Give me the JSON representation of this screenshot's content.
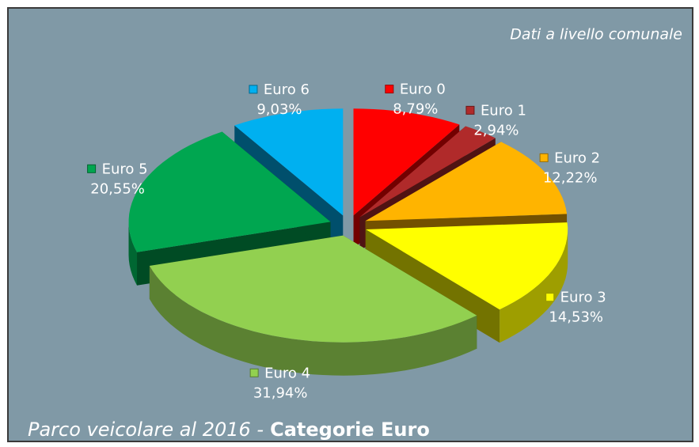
{
  "chart_data": {
    "type": "pie",
    "title": "Parco veicolare al 2016 -",
    "subtitle": "Categorie Euro",
    "annotation": "Dati a livello comunale",
    "categories": [
      "Euro 0",
      "Euro 1",
      "Euro 2",
      "Euro 3",
      "Euro 4",
      "Euro 5",
      "Euro 6"
    ],
    "values": [
      8.79,
      2.94,
      12.22,
      14.53,
      31.94,
      20.55,
      9.03
    ],
    "value_labels": [
      "8,79%",
      "2,94%",
      "12,22%",
      "14,53%",
      "31,94%",
      "20,55%",
      "9,03%"
    ],
    "colors": [
      "#ff0000",
      "#b02a2a",
      "#ffb400",
      "#ffff00",
      "#92d050",
      "#00a650",
      "#00b0f0"
    ]
  }
}
